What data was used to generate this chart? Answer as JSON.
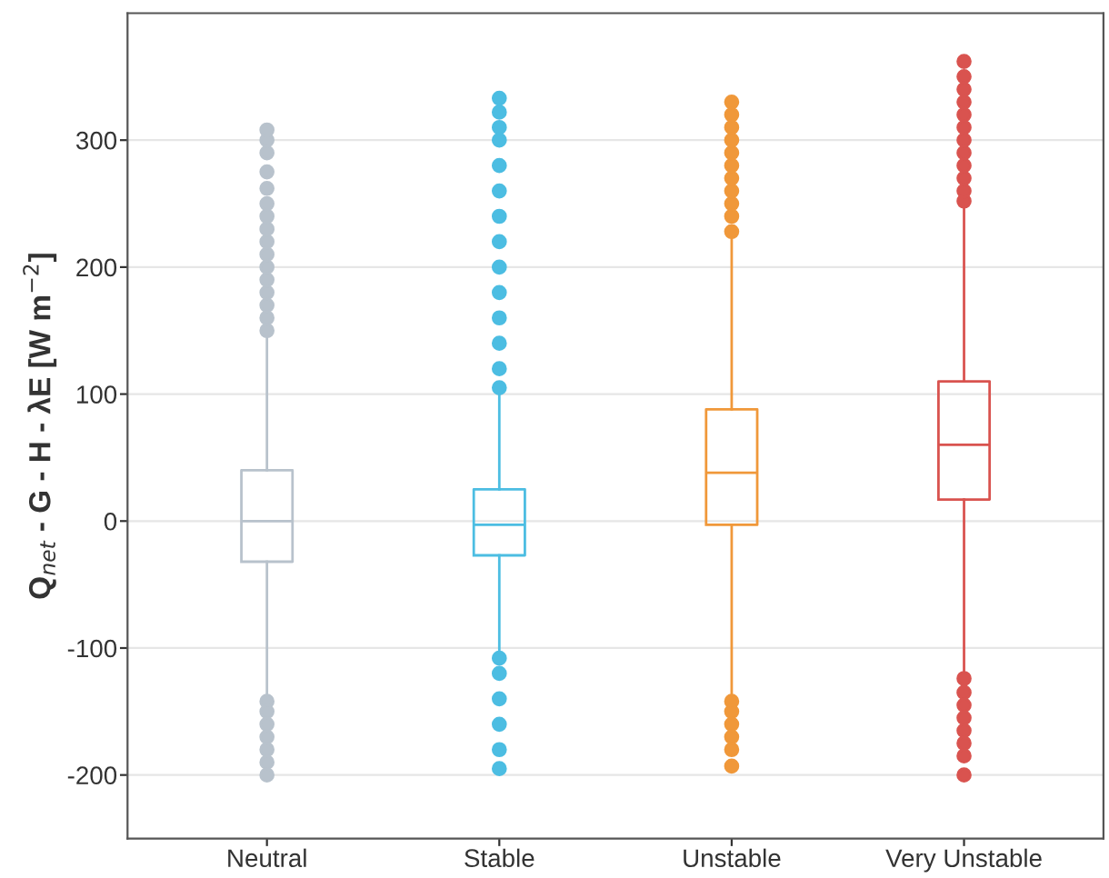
{
  "chart_data": {
    "type": "box",
    "ylabel": "Q$_{net}$ - G - H - λE [W m$^{−2}$]",
    "categories": [
      "Neutral",
      "Stable",
      "Unstable",
      "Very Unstable"
    ],
    "colors": [
      "#b8c2cc",
      "#4cbde2",
      "#f0983a",
      "#d9534f"
    ],
    "boxes": [
      {
        "low": -140,
        "q1": -32,
        "median": 0,
        "q3": 40,
        "high": 148,
        "outliers": [
          150,
          160,
          170,
          180,
          190,
          200,
          210,
          220,
          230,
          240,
          250,
          262,
          275,
          290,
          300,
          308,
          -142,
          -150,
          -160,
          -170,
          -180,
          -190,
          -200
        ]
      },
      {
        "low": -105,
        "q1": -27,
        "median": -3,
        "q3": 25,
        "high": 103,
        "outliers": [
          105,
          120,
          140,
          160,
          180,
          200,
          220,
          240,
          260,
          280,
          300,
          310,
          322,
          333,
          -108,
          -120,
          -140,
          -160,
          -180,
          -195
        ]
      },
      {
        "low": -140,
        "q1": -3,
        "median": 38,
        "q3": 88,
        "high": 225,
        "outliers": [
          228,
          240,
          250,
          260,
          270,
          280,
          290,
          300,
          310,
          320,
          330,
          -142,
          -150,
          -160,
          -170,
          -180,
          -193
        ]
      },
      {
        "low": -122,
        "q1": 17,
        "median": 60,
        "q3": 110,
        "high": 250,
        "outliers": [
          252,
          260,
          270,
          280,
          290,
          300,
          310,
          320,
          330,
          340,
          350,
          362,
          -124,
          -135,
          -145,
          -155,
          -165,
          -175,
          -185,
          -200
        ]
      }
    ],
    "ylim": [
      -250,
      400
    ],
    "yticks": [
      -200,
      -100,
      0,
      100,
      200,
      300
    ],
    "grid": "y"
  }
}
